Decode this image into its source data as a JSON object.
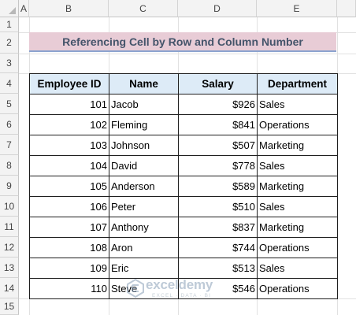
{
  "columns": [
    "A",
    "B",
    "C",
    "D",
    "E"
  ],
  "rows": [
    "1",
    "2",
    "3",
    "4",
    "5",
    "6",
    "7",
    "8",
    "9",
    "10",
    "11",
    "12",
    "13",
    "14",
    "15"
  ],
  "title": "Referencing Cell by Row and Column Number",
  "table": {
    "headers": [
      "Employee ID",
      "Name",
      "Salary",
      "Department"
    ],
    "rows": [
      [
        "101",
        "Jacob",
        "$926",
        "Sales"
      ],
      [
        "102",
        "Fleming",
        "$841",
        "Operations"
      ],
      [
        "103",
        "Johnson",
        "$507",
        "Marketing"
      ],
      [
        "104",
        "David",
        "$778",
        "Sales"
      ],
      [
        "105",
        "Anderson",
        "$589",
        "Marketing"
      ],
      [
        "106",
        "Peter",
        "$510",
        "Sales"
      ],
      [
        "107",
        "Anthony",
        "$837",
        "Marketing"
      ],
      [
        "108",
        "Aron",
        "$744",
        "Operations"
      ],
      [
        "109",
        "Eric",
        "$513",
        "Sales"
      ],
      [
        "110",
        "Steve",
        "$546",
        "Operations"
      ]
    ]
  },
  "watermark": {
    "brand": "exceldemy",
    "tagline": "EXCEL · DATA · BI"
  },
  "colors": {
    "title_fill": "#e8ccd6",
    "title_text": "#44546a",
    "header_fill": "#ddebf7",
    "title_underline": "#8ba3cf"
  }
}
